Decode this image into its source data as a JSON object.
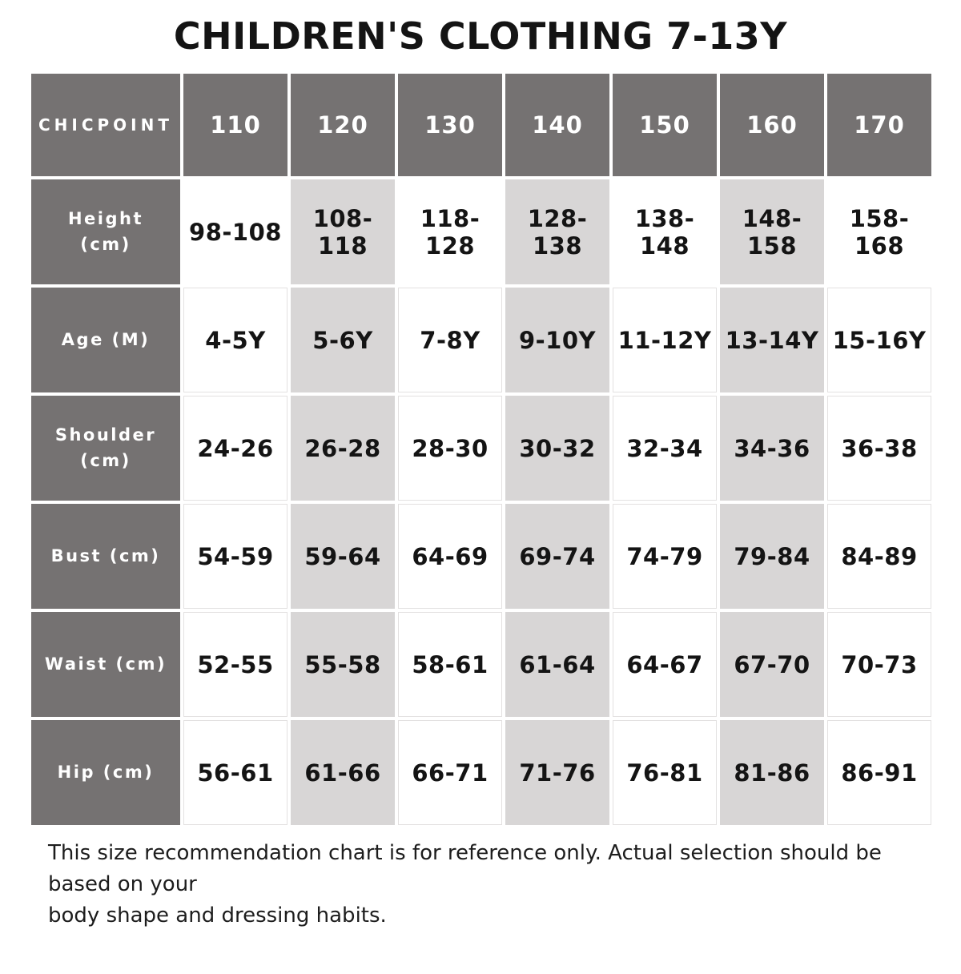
{
  "title": "CHILDREN'S CLOTHING 7-13Y",
  "table": {
    "brand": "CHICPOINT",
    "sizes": [
      "110",
      "120",
      "130",
      "140",
      "150",
      "160",
      "170"
    ],
    "rows": [
      {
        "label": "Height (cm)",
        "values": [
          "98-108",
          "108-118",
          "118-128",
          "128-138",
          "138-148",
          "148-158",
          "158-168"
        ]
      },
      {
        "label": "Age (M)",
        "values": [
          "4-5Y",
          "5-6Y",
          "7-8Y",
          "9-10Y",
          "11-12Y",
          "13-14Y",
          "15-16Y"
        ]
      },
      {
        "label": "Shoulder (cm)",
        "values": [
          "24-26",
          "26-28",
          "28-30",
          "30-32",
          "32-34",
          "34-36",
          "36-38"
        ]
      },
      {
        "label": "Bust (cm)",
        "values": [
          "54-59",
          "59-64",
          "64-69",
          "69-74",
          "74-79",
          "79-84",
          "84-89"
        ]
      },
      {
        "label": "Waist (cm)",
        "values": [
          "52-55",
          "55-58",
          "58-61",
          "61-64",
          "64-67",
          "67-70",
          "70-73"
        ]
      },
      {
        "label": "Hip (cm)",
        "values": [
          "56-61",
          "61-66",
          "66-71",
          "71-76",
          "76-81",
          "81-86",
          "86-91"
        ]
      }
    ]
  },
  "footer": {
    "note_lines": [
      "This size recommendation chart is for reference only. Actual selection should be based on your",
      "body shape and dressing habits."
    ]
  },
  "colors": {
    "header_cell": "#757272",
    "shaded_cell": "#d8d6d6",
    "cell_border": "#e3e1e1",
    "text": "#141414"
  }
}
